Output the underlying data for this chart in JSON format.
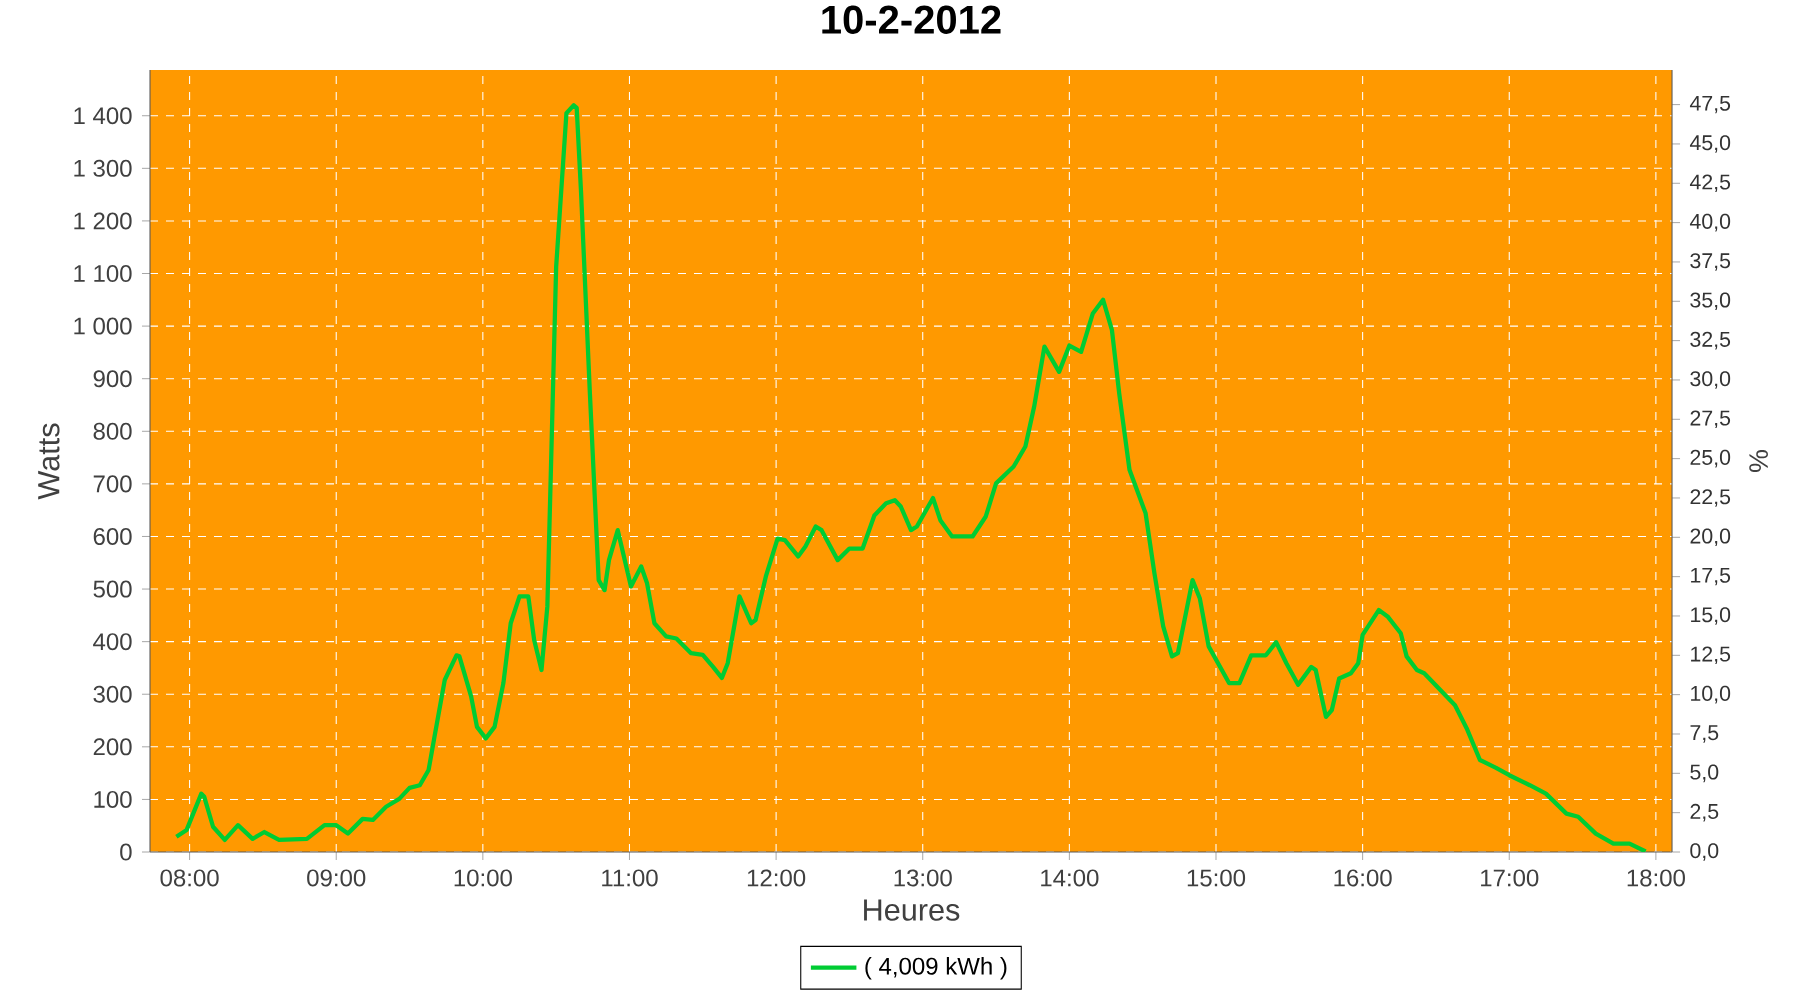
{
  "chart_data": {
    "type": "line",
    "title": "10-2-2012",
    "xlabel": "Heures",
    "ylabel": "Watts",
    "y2label": "%",
    "x": [
      7.91,
      7.98,
      8.08,
      8.1,
      8.16,
      8.24,
      8.33,
      8.43,
      8.51,
      8.61,
      8.8,
      8.92,
      9.0,
      9.08,
      9.18,
      9.25,
      9.34,
      9.43,
      9.5,
      9.57,
      9.63,
      9.67,
      9.74,
      9.82,
      9.84,
      9.92,
      9.96,
      10.02,
      10.08,
      10.14,
      10.19,
      10.25,
      10.31,
      10.35,
      10.4,
      10.44,
      10.5,
      10.57,
      10.62,
      10.64,
      10.67,
      10.73,
      10.79,
      10.83,
      10.86,
      10.92,
      11.01,
      11.08,
      11.12,
      11.17,
      11.25,
      11.32,
      11.42,
      11.5,
      11.57,
      11.63,
      11.67,
      11.75,
      11.83,
      11.86,
      11.93,
      12.01,
      12.06,
      12.15,
      12.2,
      12.27,
      12.31,
      12.42,
      12.5,
      12.59,
      12.67,
      12.75,
      12.81,
      12.85,
      12.92,
      12.96,
      13.07,
      13.12,
      13.2,
      13.34,
      13.43,
      13.5,
      13.62,
      13.7,
      13.76,
      13.83,
      13.93,
      14.0,
      14.08,
      14.16,
      14.23,
      14.29,
      14.34,
      14.41,
      14.52,
      14.58,
      14.64,
      14.7,
      14.74,
      14.84,
      14.89,
      14.95,
      15.09,
      15.16,
      15.24,
      15.34,
      15.41,
      15.48,
      15.56,
      15.65,
      15.68,
      15.75,
      15.79,
      15.84,
      15.92,
      15.97,
      16.0,
      16.11,
      16.17,
      16.26,
      16.3,
      16.37,
      16.42,
      16.53,
      16.63,
      16.71,
      16.8,
      16.91,
      17.0,
      17.14,
      17.25,
      17.39,
      17.47,
      17.59,
      17.71,
      17.82,
      17.93
    ],
    "series": [
      {
        "name": "( 4,009 kWh )",
        "color": "#00cc33",
        "values": [
          29,
          42,
          111,
          105,
          48,
          23,
          51,
          25,
          38,
          23,
          25,
          51,
          51,
          35,
          63,
          61,
          86,
          101,
          122,
          127,
          156,
          219,
          327,
          374,
          372,
          296,
          238,
          216,
          238,
          321,
          435,
          486,
          486,
          403,
          346,
          467,
          1113,
          1405,
          1420,
          1415,
          1253,
          872,
          517,
          498,
          555,
          612,
          505,
          543,
          511,
          435,
          410,
          406,
          378,
          375,
          352,
          331,
          359,
          486,
          435,
          441,
          524,
          596,
          593,
          562,
          581,
          619,
          612,
          555,
          577,
          577,
          640,
          663,
          669,
          657,
          612,
          619,
          673,
          631,
          600,
          600,
          638,
          701,
          733,
          771,
          847,
          961,
          913,
          963,
          951,
          1024,
          1050,
          993,
          872,
          727,
          644,
          530,
          429,
          372,
          378,
          517,
          482,
          391,
          321,
          321,
          374,
          374,
          399,
          359,
          318,
          352,
          346,
          257,
          270,
          330,
          340,
          359,
          413,
          460,
          448,
          416,
          372,
          346,
          340,
          308,
          279,
          235,
          175,
          160,
          146,
          127,
          111,
          73,
          67,
          35,
          16,
          16,
          1
        ]
      }
    ],
    "xlim": [
      7.73,
      18.11
    ],
    "xticks": [
      {
        "value": 8,
        "label": "08:00"
      },
      {
        "value": 9,
        "label": "09:00"
      },
      {
        "value": 10,
        "label": "10:00"
      },
      {
        "value": 11,
        "label": "11:00"
      },
      {
        "value": 12,
        "label": "12:00"
      },
      {
        "value": 13,
        "label": "13:00"
      },
      {
        "value": 14,
        "label": "14:00"
      },
      {
        "value": 15,
        "label": "15:00"
      },
      {
        "value": 16,
        "label": "16:00"
      },
      {
        "value": 17,
        "label": "17:00"
      },
      {
        "value": 18,
        "label": "18:00"
      }
    ],
    "ylim": [
      0,
      1487
    ],
    "yticks": [
      0,
      100,
      200,
      300,
      400,
      500,
      600,
      700,
      800,
      900,
      {
        "value": 1000,
        "label": "1 000"
      },
      {
        "value": 1100,
        "label": "1 100"
      },
      {
        "value": 1200,
        "label": "1 200"
      },
      {
        "value": 1300,
        "label": "1 300"
      },
      {
        "value": 1400,
        "label": "1 400"
      }
    ],
    "y2lim": [
      0,
      49.7
    ],
    "y2ticks": [
      {
        "value": 0,
        "label": "0,0"
      },
      {
        "value": 2.5,
        "label": "2,5"
      },
      {
        "value": 5,
        "label": "5,0"
      },
      {
        "value": 7.5,
        "label": "7,5"
      },
      {
        "value": 10,
        "label": "10,0"
      },
      {
        "value": 12.5,
        "label": "12,5"
      },
      {
        "value": 15,
        "label": "15,0"
      },
      {
        "value": 17.5,
        "label": "17,5"
      },
      {
        "value": 20,
        "label": "20,0"
      },
      {
        "value": 22.5,
        "label": "22,5"
      },
      {
        "value": 25,
        "label": "25,0"
      },
      {
        "value": 27.5,
        "label": "27,5"
      },
      {
        "value": 30,
        "label": "30,0"
      },
      {
        "value": 32.5,
        "label": "32,5"
      },
      {
        "value": 35,
        "label": "35,0"
      },
      {
        "value": 37.5,
        "label": "37,5"
      },
      {
        "value": 40,
        "label": "40,0"
      },
      {
        "value": 42.5,
        "label": "42,5"
      },
      {
        "value": 45,
        "label": "45,0"
      },
      {
        "value": 47.5,
        "label": "47,5"
      }
    ],
    "grid": true,
    "legend": "bottom"
  }
}
